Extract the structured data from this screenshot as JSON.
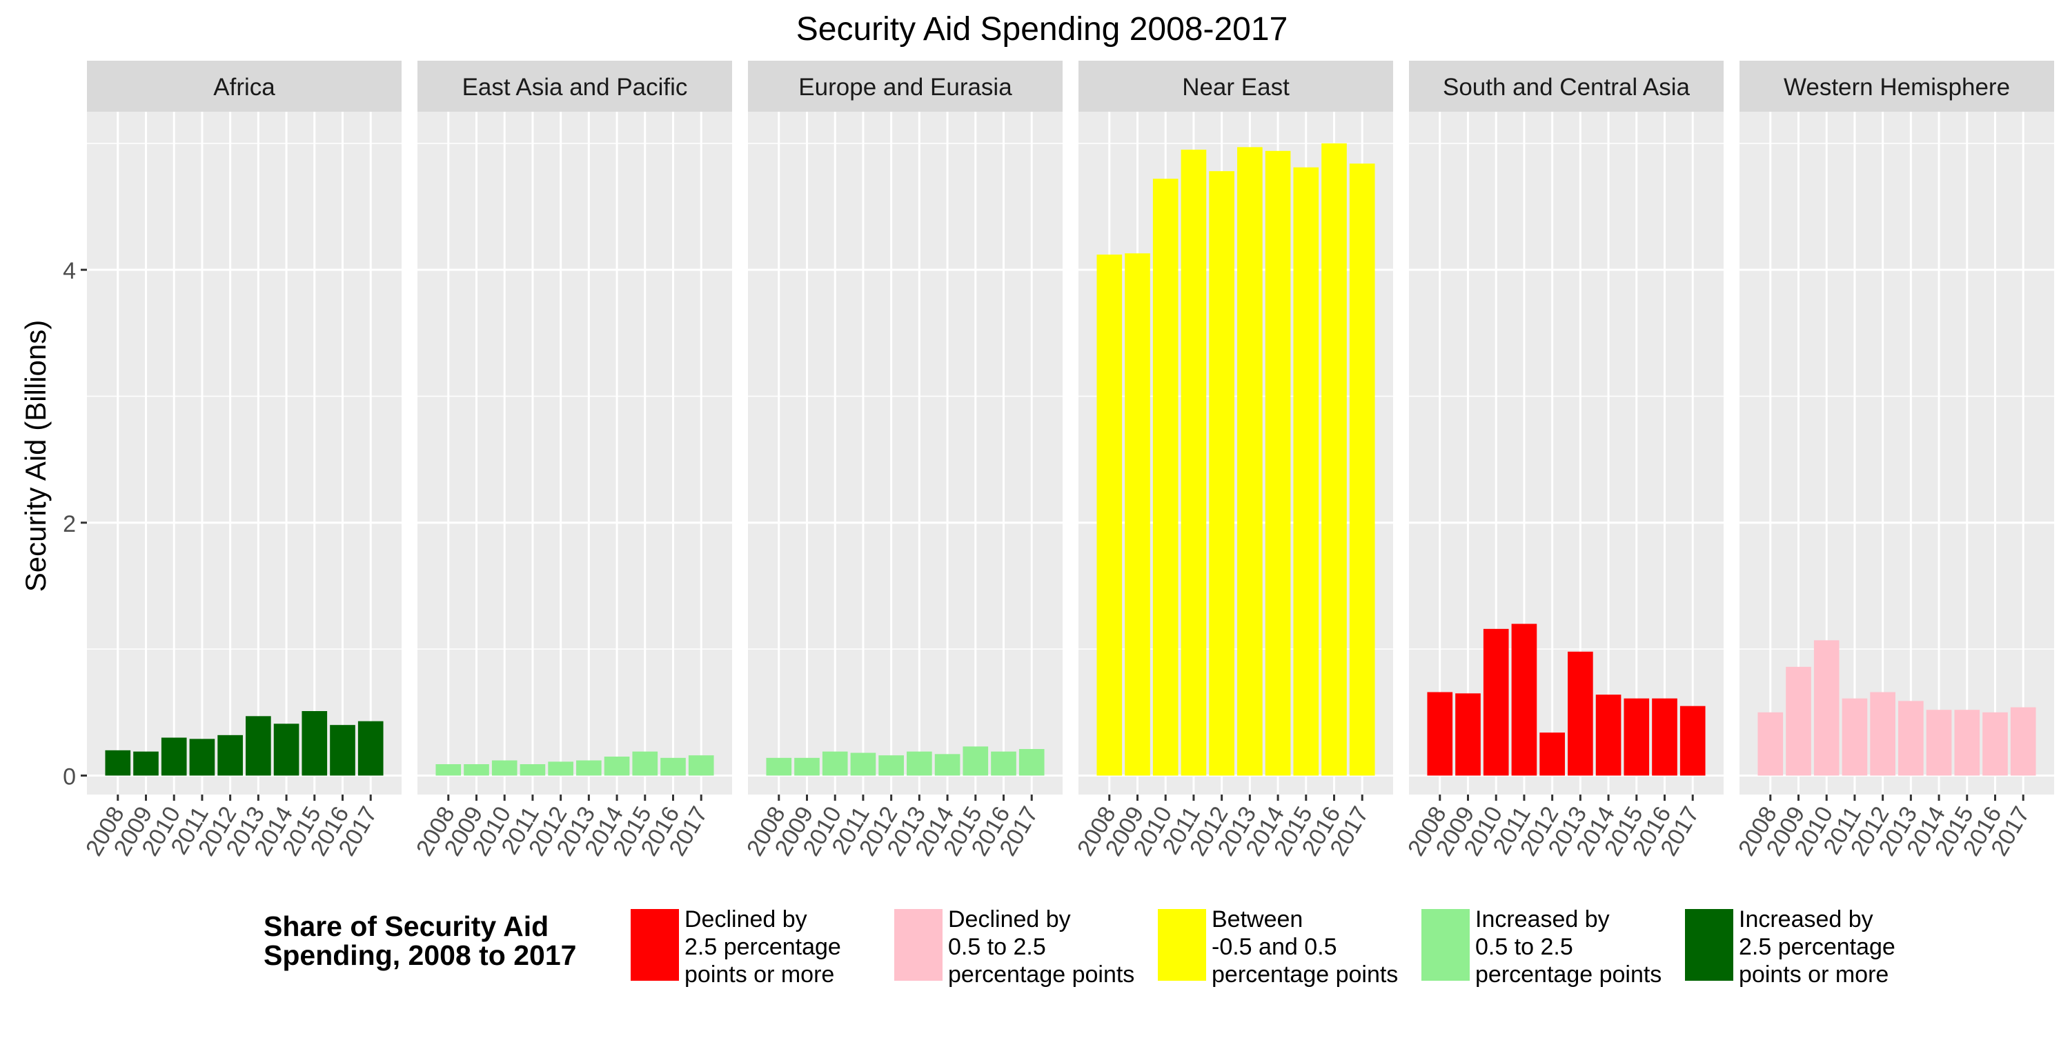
{
  "chart_data": {
    "type": "bar",
    "title": "Security Aid Spending 2008-2017",
    "ylabel": "Security Aid (Billions)",
    "xlabel": "",
    "ylim": [
      -0.15,
      5.25
    ],
    "yticks": [
      0,
      2,
      4
    ],
    "categories": [
      "2008",
      "2009",
      "2010",
      "2011",
      "2012",
      "2013",
      "2014",
      "2015",
      "2016",
      "2017"
    ],
    "grid": true,
    "legend_position": "bottom",
    "legend": {
      "title_lines": [
        "Share of Security Aid",
        "Spending, 2008 to 2017"
      ],
      "entries": [
        {
          "key": "declined-2.5",
          "label_lines": [
            "Declined by",
            "2.5 percentage",
            "points or more"
          ],
          "color": "#ff0000"
        },
        {
          "key": "declined-0.5-2.5",
          "label_lines": [
            "Declined by",
            "0.5 to 2.5",
            "percentage points"
          ],
          "color": "#ffc0cb"
        },
        {
          "key": "between",
          "label_lines": [
            "Between",
            "-0.5 and 0.5",
            "percentage points"
          ],
          "color": "#ffff00"
        },
        {
          "key": "increased-0.5-2.5",
          "label_lines": [
            "Increased by",
            "0.5 to 2.5",
            "percentage points"
          ],
          "color": "#90ee90"
        },
        {
          "key": "increased-2.5",
          "label_lines": [
            "Increased by",
            "2.5 percentage",
            "points or more"
          ],
          "color": "#006400"
        }
      ]
    },
    "panels": [
      {
        "name": "Africa",
        "color": "#006400",
        "values": [
          0.2,
          0.19,
          0.3,
          0.29,
          0.32,
          0.47,
          0.41,
          0.51,
          0.4,
          0.43
        ]
      },
      {
        "name": "East Asia and Pacific",
        "color": "#90ee90",
        "values": [
          0.09,
          0.09,
          0.12,
          0.09,
          0.11,
          0.12,
          0.15,
          0.19,
          0.14,
          0.16
        ]
      },
      {
        "name": "Europe and Eurasia",
        "color": "#90ee90",
        "values": [
          0.14,
          0.14,
          0.19,
          0.18,
          0.16,
          0.19,
          0.17,
          0.23,
          0.19,
          0.21
        ]
      },
      {
        "name": "Near East",
        "color": "#ffff00",
        "values": [
          4.12,
          4.13,
          4.72,
          4.95,
          4.78,
          4.97,
          4.94,
          4.81,
          5.0,
          4.84
        ]
      },
      {
        "name": "South and Central Asia",
        "color": "#ff0000",
        "values": [
          0.66,
          0.65,
          1.16,
          1.2,
          0.34,
          0.98,
          0.64,
          0.61,
          0.61,
          0.55
        ]
      },
      {
        "name": "Western Hemisphere",
        "color": "#ffc0cb",
        "values": [
          0.5,
          0.86,
          1.07,
          0.61,
          0.66,
          0.59,
          0.52,
          0.52,
          0.5,
          0.54
        ]
      }
    ]
  }
}
